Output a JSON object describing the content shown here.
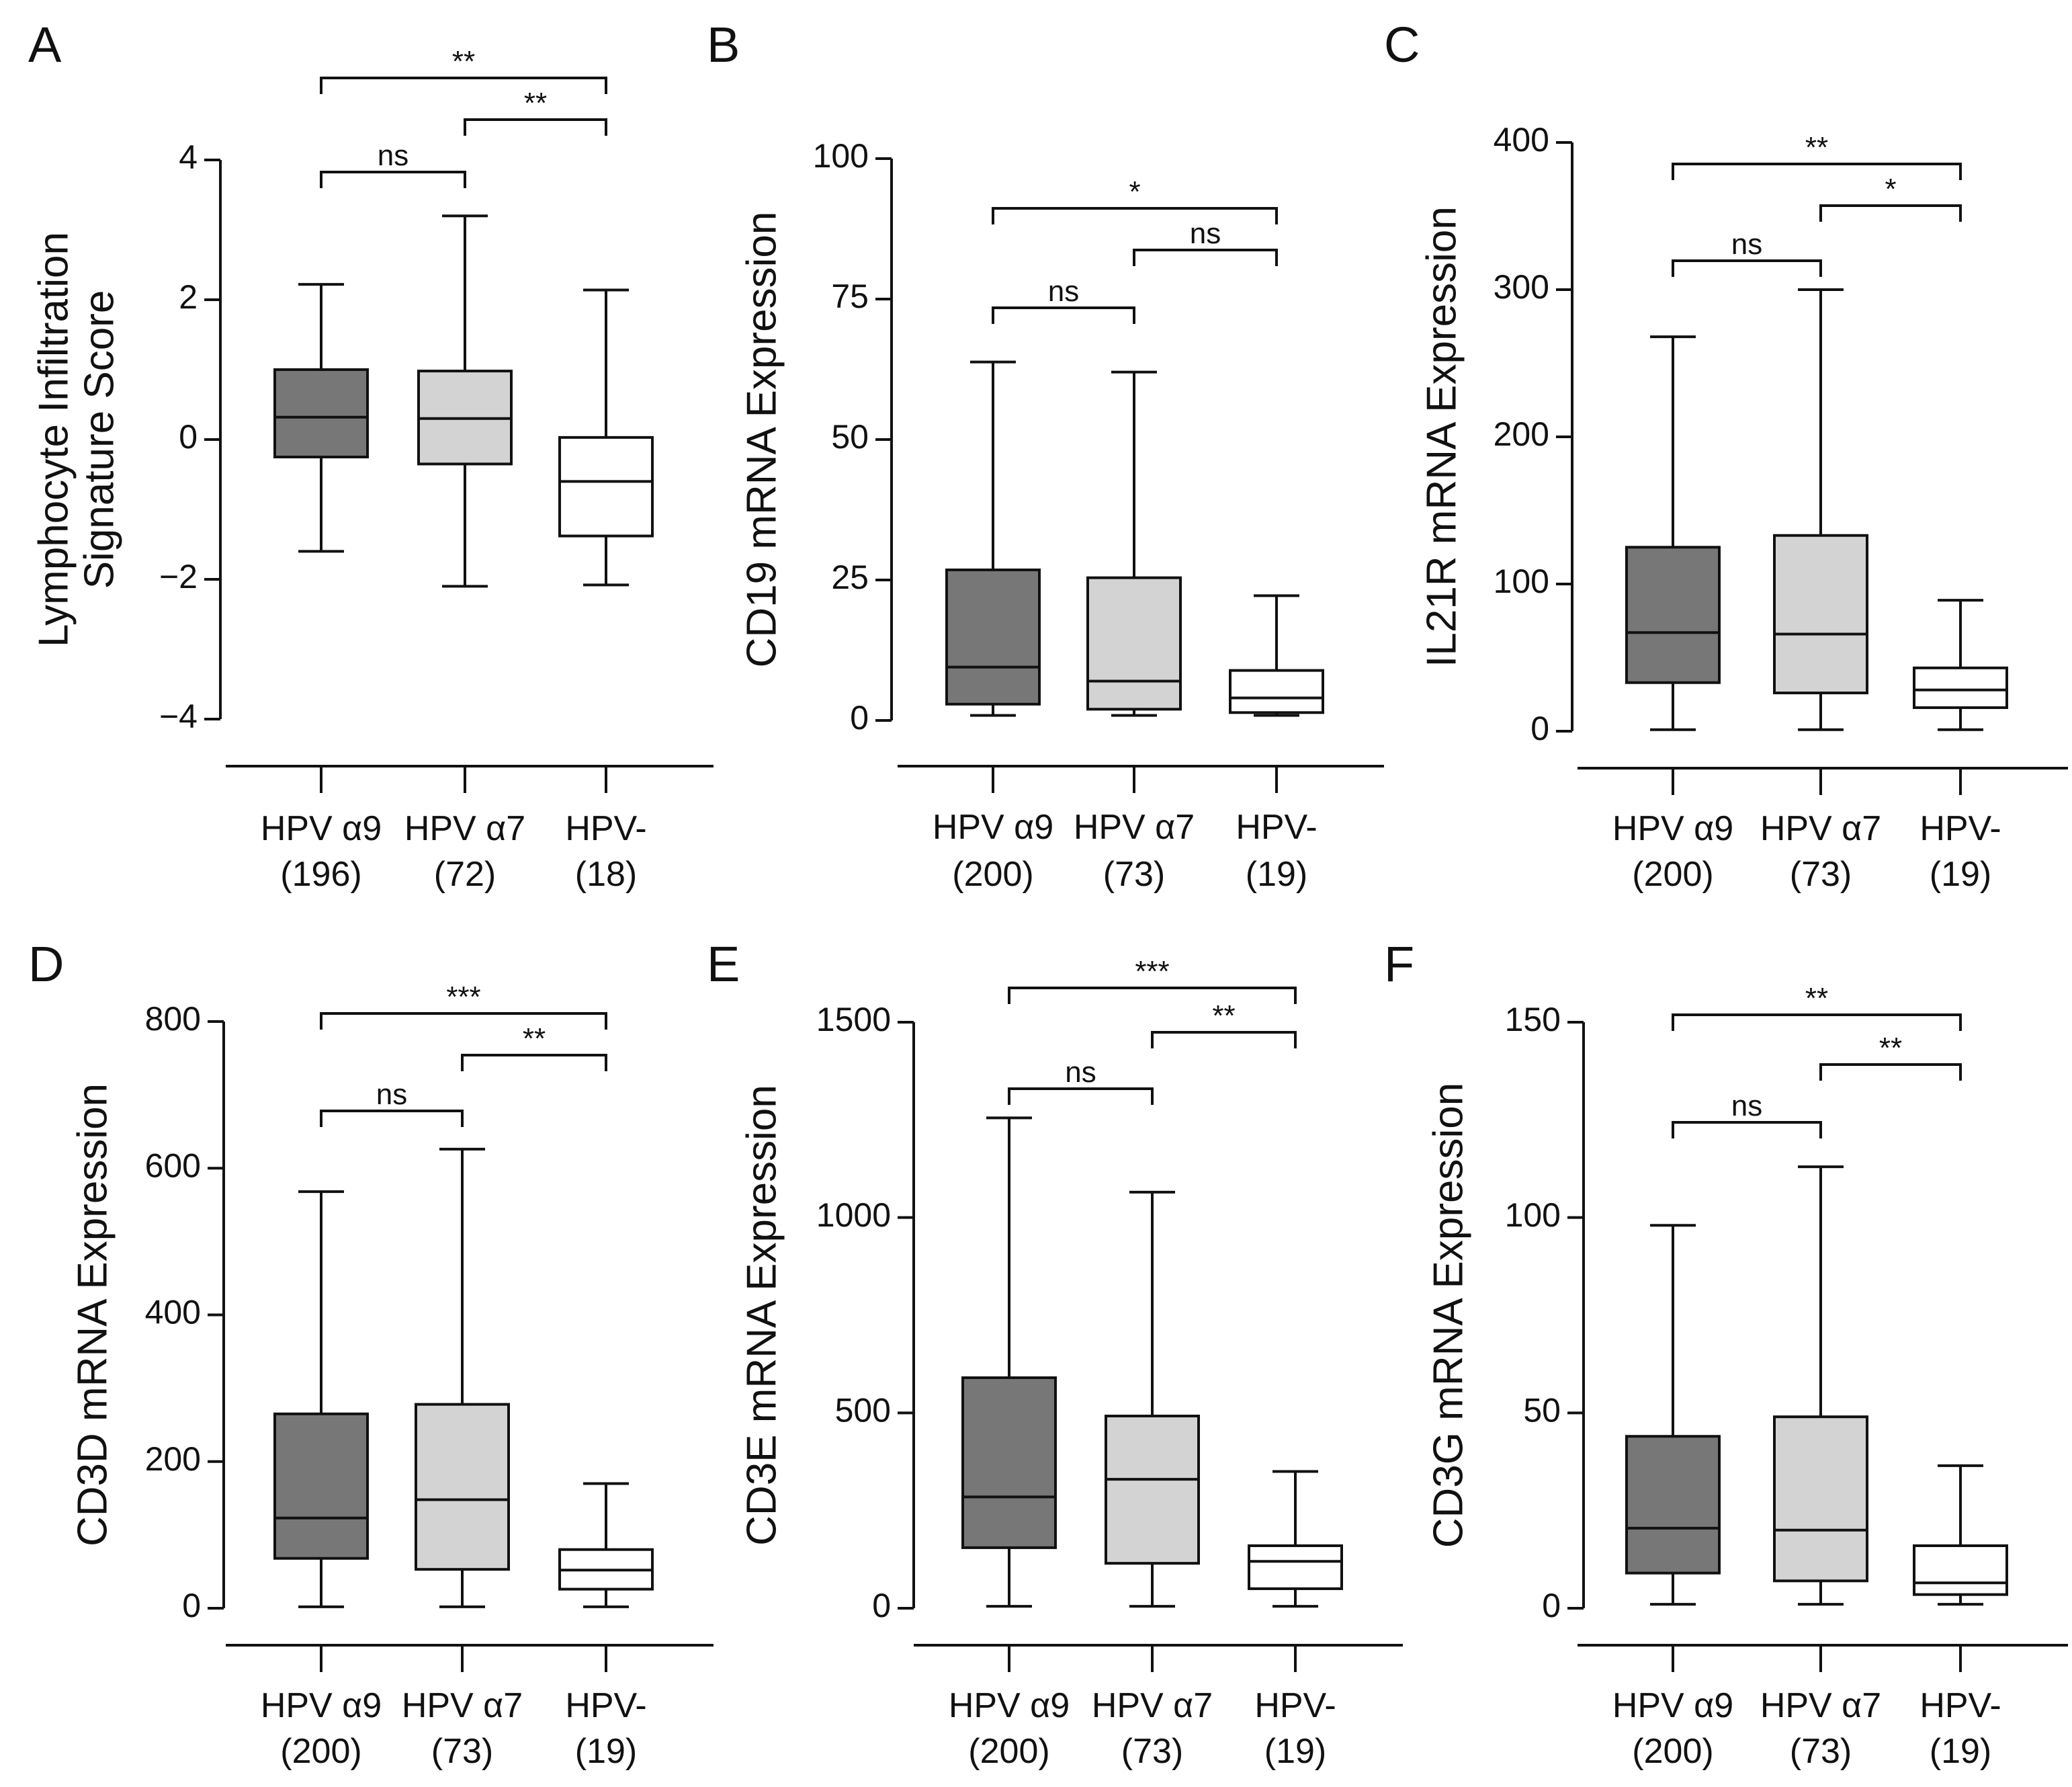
{
  "figure": {
    "colors": {
      "alpha9": "#777777",
      "alpha7": "#d3d3d3",
      "neg": "#ffffff",
      "stroke": "#111111"
    }
  },
  "chart_data": [
    {
      "panel": "A",
      "type": "box",
      "ylabel": [
        "Lymphocyte Infiltration",
        "Signature Score"
      ],
      "ylim": [
        -4,
        4
      ],
      "yticks": [
        4,
        2,
        0,
        -2,
        -4
      ],
      "ytick_labels": [
        "4",
        "2",
        "0",
        "−2",
        "−4"
      ],
      "categories": [
        {
          "name": "HPV α9",
          "n": "(196)"
        },
        {
          "name": "HPV α7",
          "n": "(72)"
        },
        {
          "name": "HPV-",
          "n": "(18)"
        }
      ],
      "boxes": [
        {
          "min": -1.6,
          "q1": -0.25,
          "median": 0.32,
          "q3": 1.0,
          "max": 2.22
        },
        {
          "min": -2.1,
          "q1": -0.35,
          "median": 0.3,
          "q3": 0.98,
          "max": 3.2
        },
        {
          "min": -2.08,
          "q1": -1.38,
          "median": -0.6,
          "q3": 0.03,
          "max": 2.14
        }
      ],
      "comparisons": [
        {
          "from": 0,
          "to": 2,
          "label": "**",
          "level": 3
        },
        {
          "from": 1,
          "to": 2,
          "label": "**",
          "level": 2
        },
        {
          "from": 0,
          "to": 1,
          "label": "ns",
          "level": 1
        }
      ]
    },
    {
      "panel": "B",
      "type": "box",
      "ylabel": [
        "CD19 mRNA Expression"
      ],
      "ylim": [
        0,
        100
      ],
      "yticks": [
        100,
        75,
        50,
        25,
        0
      ],
      "ytick_labels": [
        "100",
        "75",
        "50",
        "25",
        "0"
      ],
      "categories": [
        {
          "name": "HPV α9",
          "n": "(200)"
        },
        {
          "name": "HPV α7",
          "n": "(73)"
        },
        {
          "name": "HPV-",
          "n": "(19)"
        }
      ],
      "boxes": [
        {
          "min": 0.9,
          "q1": 2.9,
          "median": 9.5,
          "q3": 26.8,
          "max": 63.8
        },
        {
          "min": 0.9,
          "q1": 2.0,
          "median": 7.0,
          "q3": 25.4,
          "max": 62.0
        },
        {
          "min": 0.9,
          "q1": 1.4,
          "median": 4.0,
          "q3": 8.9,
          "max": 22.2
        }
      ],
      "comparisons": [
        {
          "from": 0,
          "to": 2,
          "label": "*",
          "level": 3
        },
        {
          "from": 1,
          "to": 2,
          "label": "ns",
          "level": 2
        },
        {
          "from": 0,
          "to": 1,
          "label": "ns",
          "level": 1
        }
      ]
    },
    {
      "panel": "C",
      "type": "box",
      "ylabel": [
        "IL21R mRNA Expression"
      ],
      "ylim": [
        0,
        400
      ],
      "yticks": [
        400,
        300,
        200,
        100,
        0
      ],
      "ytick_labels": [
        "400",
        "300",
        "200",
        "100",
        "0"
      ],
      "categories": [
        {
          "name": "HPV α9",
          "n": "(200)"
        },
        {
          "name": "HPV α7",
          "n": "(73)"
        },
        {
          "name": "HPV-",
          "n": "(19)"
        }
      ],
      "boxes": [
        {
          "min": 1,
          "q1": 33,
          "median": 67,
          "q3": 125,
          "max": 268
        },
        {
          "min": 1,
          "q1": 26,
          "median": 66,
          "q3": 133,
          "max": 300
        },
        {
          "min": 1,
          "q1": 16,
          "median": 28,
          "q3": 43,
          "max": 89
        }
      ],
      "comparisons": [
        {
          "from": 0,
          "to": 2,
          "label": "**",
          "level": 3
        },
        {
          "from": 1,
          "to": 2,
          "label": "*",
          "level": 2
        },
        {
          "from": 0,
          "to": 1,
          "label": "ns",
          "level": 1
        }
      ]
    },
    {
      "panel": "D",
      "type": "box",
      "ylabel": [
        "CD3D mRNA Expression"
      ],
      "ylim": [
        0,
        800
      ],
      "yticks": [
        800,
        600,
        400,
        200,
        0
      ],
      "ytick_labels": [
        "800",
        "600",
        "400",
        "200",
        "0"
      ],
      "categories": [
        {
          "name": "HPV α9",
          "n": "(200)"
        },
        {
          "name": "HPV α7",
          "n": "(73)"
        },
        {
          "name": "HPV-",
          "n": "(19)"
        }
      ],
      "boxes": [
        {
          "min": 2,
          "q1": 68,
          "median": 123,
          "q3": 265,
          "max": 568
        },
        {
          "min": 2,
          "q1": 53,
          "median": 148,
          "q3": 278,
          "max": 626
        },
        {
          "min": 2,
          "q1": 26,
          "median": 52,
          "q3": 80,
          "max": 170
        }
      ],
      "comparisons": [
        {
          "from": 0,
          "to": 2,
          "label": "***",
          "level": 3
        },
        {
          "from": 1,
          "to": 2,
          "label": "**",
          "level": 2
        },
        {
          "from": 0,
          "to": 1,
          "label": "ns",
          "level": 1
        }
      ]
    },
    {
      "panel": "E",
      "type": "box",
      "ylabel": [
        "CD3E mRNA Expression"
      ],
      "ylim": [
        0,
        1500
      ],
      "yticks": [
        1500,
        1000,
        500,
        0
      ],
      "ytick_labels": [
        "1500",
        "1000",
        "500",
        "0"
      ],
      "categories": [
        {
          "name": "HPV α9",
          "n": "(200)"
        },
        {
          "name": "HPV α7",
          "n": "(73)"
        },
        {
          "name": "HPV-",
          "n": "(19)"
        }
      ],
      "boxes": [
        {
          "min": 5,
          "q1": 155,
          "median": 285,
          "q3": 590,
          "max": 1255
        },
        {
          "min": 5,
          "q1": 115,
          "median": 330,
          "q3": 492,
          "max": 1065
        },
        {
          "min": 5,
          "q1": 50,
          "median": 120,
          "q3": 160,
          "max": 350
        }
      ],
      "comparisons": [
        {
          "from": 0,
          "to": 2,
          "label": "***",
          "level": 3
        },
        {
          "from": 1,
          "to": 2,
          "label": "**",
          "level": 2
        },
        {
          "from": 0,
          "to": 1,
          "label": "ns",
          "level": 1
        }
      ]
    },
    {
      "panel": "F",
      "type": "box",
      "ylabel": [
        "CD3G mRNA Expression"
      ],
      "ylim": [
        0,
        150
      ],
      "yticks": [
        150,
        100,
        50,
        0
      ],
      "ytick_labels": [
        "150",
        "100",
        "50",
        "0"
      ],
      "categories": [
        {
          "name": "HPV α9",
          "n": "(200)"
        },
        {
          "name": "HPV α7",
          "n": "(73)"
        },
        {
          "name": "HPV-",
          "n": "(19)"
        }
      ],
      "boxes": [
        {
          "min": 1,
          "q1": 9,
          "median": 20.5,
          "q3": 44,
          "max": 98
        },
        {
          "min": 1,
          "q1": 7,
          "median": 20,
          "q3": 49,
          "max": 113
        },
        {
          "min": 1,
          "q1": 3.5,
          "median": 6.5,
          "q3": 16,
          "max": 36.5
        }
      ],
      "comparisons": [
        {
          "from": 0,
          "to": 2,
          "label": "**",
          "level": 3
        },
        {
          "from": 1,
          "to": 2,
          "label": "**",
          "level": 2
        },
        {
          "from": 0,
          "to": 1,
          "label": "ns",
          "level": 1
        }
      ]
    }
  ]
}
